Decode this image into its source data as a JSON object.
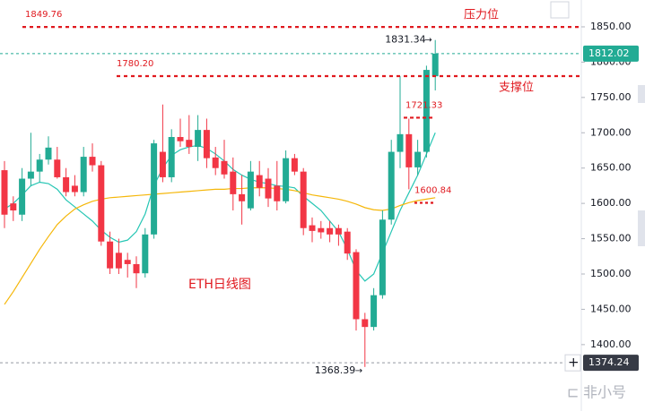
{
  "chart_data": {
    "type": "candlestick",
    "title": "ETH日线图",
    "open": [
      1647,
      1600,
      1584,
      1635,
      1645,
      1662,
      1662,
      1637,
      1625,
      1616,
      1666,
      1654,
      1546,
      1530,
      1520,
      1514,
      1501,
      1556,
      1673,
      1637,
      1694,
      1690,
      1680,
      1704,
      1665,
      1660,
      1645,
      1613,
      1593,
      1640,
      1635,
      1625,
      1603,
      1664,
      1645,
      1569,
      1565,
      1565,
      1565,
      1560,
      1531,
      1436,
      1425,
      1470,
      1577,
      1673,
      1698,
      1651,
      1673,
      1780
    ],
    "high": [
      1660,
      1610,
      1650,
      1700,
      1670,
      1695,
      1680,
      1650,
      1640,
      1680,
      1685,
      1660,
      1560,
      1550,
      1530,
      1525,
      1565,
      1690,
      1740,
      1705,
      1720,
      1725,
      1725,
      1720,
      1680,
      1690,
      1665,
      1640,
      1660,
      1660,
      1650,
      1660,
      1675,
      1670,
      1650,
      1580,
      1575,
      1575,
      1570,
      1565,
      1535,
      1445,
      1480,
      1590,
      1690,
      1780,
      1720,
      1690,
      1795,
      1831.34
    ],
    "low": [
      1565,
      1575,
      1575,
      1625,
      1630,
      1655,
      1635,
      1610,
      1610,
      1610,
      1645,
      1540,
      1500,
      1500,
      1495,
      1480,
      1495,
      1550,
      1630,
      1630,
      1680,
      1670,
      1660,
      1650,
      1640,
      1635,
      1590,
      1570,
      1590,
      1610,
      1595,
      1590,
      1600,
      1640,
      1555,
      1545,
      1550,
      1545,
      1540,
      1520,
      1420,
      1368.39,
      1420,
      1465,
      1570,
      1650,
      1620,
      1640,
      1665,
      1760
    ],
    "close": [
      1584,
      1590,
      1635,
      1645,
      1662,
      1679,
      1637,
      1616,
      1616,
      1666,
      1654,
      1546,
      1508,
      1508,
      1514,
      1501,
      1556,
      1685,
      1637,
      1694,
      1688,
      1680,
      1704,
      1664,
      1650,
      1641,
      1613,
      1603,
      1645,
      1622,
      1607,
      1603,
      1664,
      1645,
      1565,
      1561,
      1559,
      1556,
      1556,
      1529,
      1436,
      1425,
      1470,
      1577,
      1673,
      1698,
      1651,
      1673,
      1789,
      1812.02
    ],
    "up_color": "#22ab94",
    "down_color": "#f23645",
    "series": [
      {
        "color": "#26c6b4",
        "values": [
          1592,
          1600,
          1612,
          1625,
          1630,
          1628,
          1620,
          1605,
          1595,
          1585,
          1575,
          1562,
          1552,
          1545,
          1548,
          1560,
          1585,
          1625,
          1650,
          1668,
          1676,
          1680,
          1682,
          1678,
          1670,
          1660,
          1648,
          1640,
          1634,
          1630,
          1628,
          1625,
          1624,
          1622,
          1610,
          1600,
          1590,
          1575,
          1560,
          1535,
          1505,
          1490,
          1500,
          1530,
          1560,
          1590,
          1615,
          1640,
          1670,
          1700
        ]
      },
      {
        "color": "#f5b70a",
        "values": [
          1457,
          1475,
          1495,
          1515,
          1535,
          1553,
          1570,
          1582,
          1592,
          1598,
          1603,
          1606,
          1608,
          1609,
          1610,
          1611,
          1612,
          1613,
          1614,
          1615,
          1616,
          1617,
          1618,
          1619,
          1620,
          1620,
          1621,
          1621,
          1622,
          1622,
          1622,
          1621,
          1620,
          1618,
          1615,
          1612,
          1610,
          1608,
          1606,
          1603,
          1599,
          1594,
          1591,
          1590,
          1592,
          1597,
          1601,
          1604,
          1606,
          1608
        ]
      }
    ],
    "levels": [
      {
        "value": 1849.76,
        "text": "压力位"
      },
      {
        "value": 1780.2,
        "label": "1780.20",
        "text": "支撑位"
      },
      {
        "value": 1721.33
      },
      {
        "value": 1600.84
      }
    ],
    "crosshair_price": 1374.24,
    "ylim": [
      1306,
      1888
    ],
    "yticks": [
      {
        "value": 1400,
        "label": "1400.00"
      },
      {
        "value": 1450,
        "label": "1450.00"
      },
      {
        "value": 1500,
        "label": "1500.00"
      },
      {
        "value": 1550,
        "label": "1550.00"
      },
      {
        "value": 1600,
        "label": "1600.00"
      },
      {
        "value": 1650,
        "label": "1650.00"
      },
      {
        "value": 1700,
        "label": "1700.00"
      },
      {
        "value": 1750,
        "label": "1750.00"
      },
      {
        "value": 1800,
        "label": "1800.00"
      },
      {
        "value": 1850,
        "label": "1850.00"
      }
    ],
    "watermark": "非小号"
  }
}
